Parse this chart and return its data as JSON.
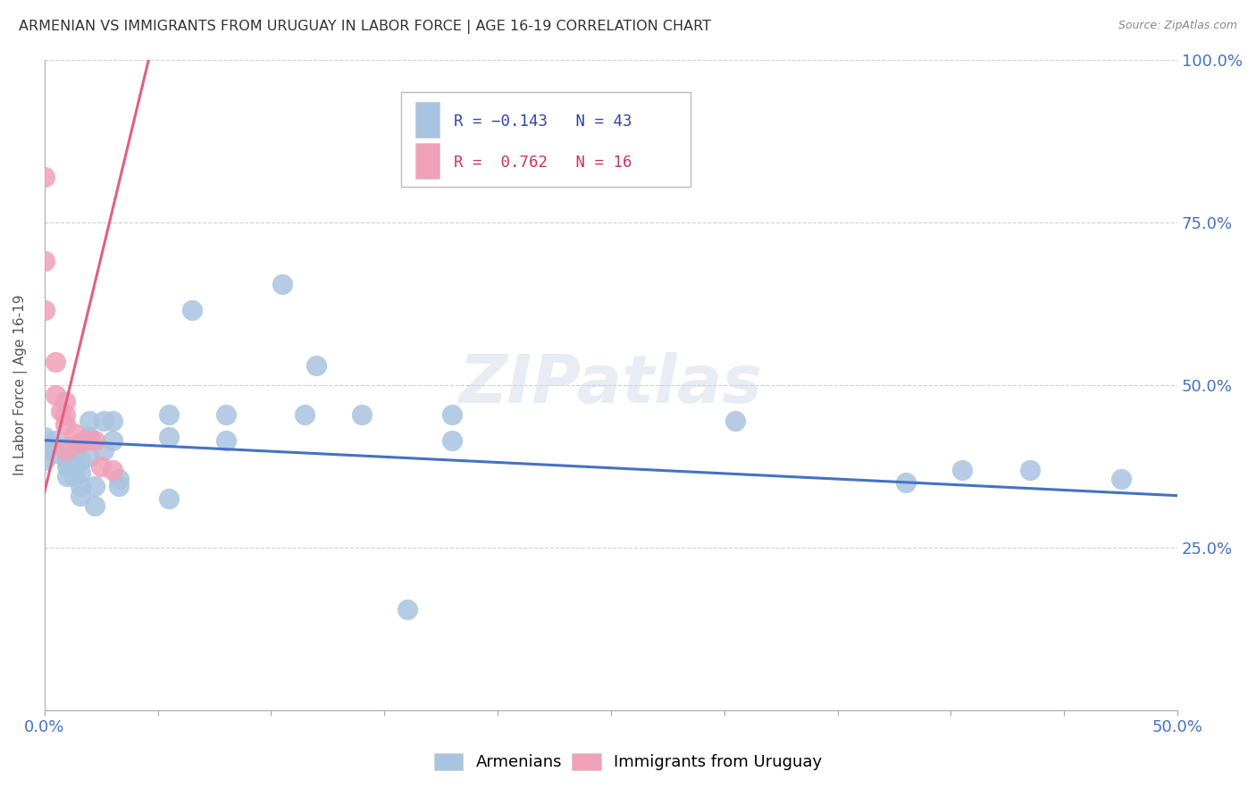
{
  "title": "ARMENIAN VS IMMIGRANTS FROM URUGUAY IN LABOR FORCE | AGE 16-19 CORRELATION CHART",
  "source": "Source: ZipAtlas.com",
  "ylabel": "In Labor Force | Age 16-19",
  "xlim": [
    0.0,
    0.5
  ],
  "ylim": [
    0.0,
    1.0
  ],
  "xticks": [
    0.0,
    0.05,
    0.1,
    0.15,
    0.2,
    0.25,
    0.3,
    0.35,
    0.4,
    0.45,
    0.5
  ],
  "xticklabels": [
    "0.0%",
    "",
    "",
    "",
    "",
    "",
    "",
    "",
    "",
    "",
    "50.0%"
  ],
  "ytick_positions": [
    0.0,
    0.25,
    0.5,
    0.75,
    1.0
  ],
  "yticklabels_right": [
    "",
    "25.0%",
    "50.0%",
    "75.0%",
    "100.0%"
  ],
  "blue_color": "#a8c4e0",
  "pink_color": "#f0a0b8",
  "line_blue": "#4472c4",
  "line_pink": "#e06080",
  "watermark": "ZIPatlas",
  "blue_points": [
    [
      0.0,
      0.42
    ],
    [
      0.0,
      0.4
    ],
    [
      0.0,
      0.385
    ],
    [
      0.005,
      0.415
    ],
    [
      0.005,
      0.395
    ],
    [
      0.01,
      0.405
    ],
    [
      0.01,
      0.385
    ],
    [
      0.01,
      0.375
    ],
    [
      0.01,
      0.36
    ],
    [
      0.013,
      0.395
    ],
    [
      0.013,
      0.375
    ],
    [
      0.013,
      0.36
    ],
    [
      0.016,
      0.385
    ],
    [
      0.016,
      0.365
    ],
    [
      0.016,
      0.345
    ],
    [
      0.016,
      0.33
    ],
    [
      0.02,
      0.445
    ],
    [
      0.02,
      0.42
    ],
    [
      0.02,
      0.39
    ],
    [
      0.022,
      0.345
    ],
    [
      0.022,
      0.315
    ],
    [
      0.026,
      0.445
    ],
    [
      0.026,
      0.4
    ],
    [
      0.03,
      0.445
    ],
    [
      0.03,
      0.415
    ],
    [
      0.033,
      0.355
    ],
    [
      0.033,
      0.345
    ],
    [
      0.055,
      0.455
    ],
    [
      0.055,
      0.42
    ],
    [
      0.055,
      0.325
    ],
    [
      0.065,
      0.615
    ],
    [
      0.08,
      0.455
    ],
    [
      0.08,
      0.415
    ],
    [
      0.105,
      0.655
    ],
    [
      0.115,
      0.455
    ],
    [
      0.12,
      0.53
    ],
    [
      0.14,
      0.455
    ],
    [
      0.16,
      0.155
    ],
    [
      0.18,
      0.455
    ],
    [
      0.18,
      0.415
    ],
    [
      0.305,
      0.445
    ],
    [
      0.38,
      0.35
    ],
    [
      0.405,
      0.37
    ],
    [
      0.435,
      0.37
    ],
    [
      0.475,
      0.355
    ]
  ],
  "pink_points": [
    [
      0.0,
      0.82
    ],
    [
      0.0,
      0.69
    ],
    [
      0.0,
      0.615
    ],
    [
      0.005,
      0.535
    ],
    [
      0.005,
      0.485
    ],
    [
      0.007,
      0.46
    ],
    [
      0.009,
      0.475
    ],
    [
      0.009,
      0.455
    ],
    [
      0.009,
      0.44
    ],
    [
      0.009,
      0.4
    ],
    [
      0.013,
      0.425
    ],
    [
      0.015,
      0.41
    ],
    [
      0.018,
      0.415
    ],
    [
      0.022,
      0.415
    ],
    [
      0.025,
      0.375
    ],
    [
      0.03,
      0.37
    ]
  ],
  "blue_line_x": [
    0.0,
    0.5
  ],
  "blue_line_y": [
    0.415,
    0.33
  ],
  "pink_line_x": [
    0.0,
    0.046
  ],
  "pink_line_y": [
    0.335,
    1.0
  ],
  "background_color": "#ffffff",
  "grid_color": "#d0d0d0",
  "title_color": "#333333",
  "axis_color": "#4472c4",
  "title_fontsize": 11.5,
  "source_fontsize": 9
}
